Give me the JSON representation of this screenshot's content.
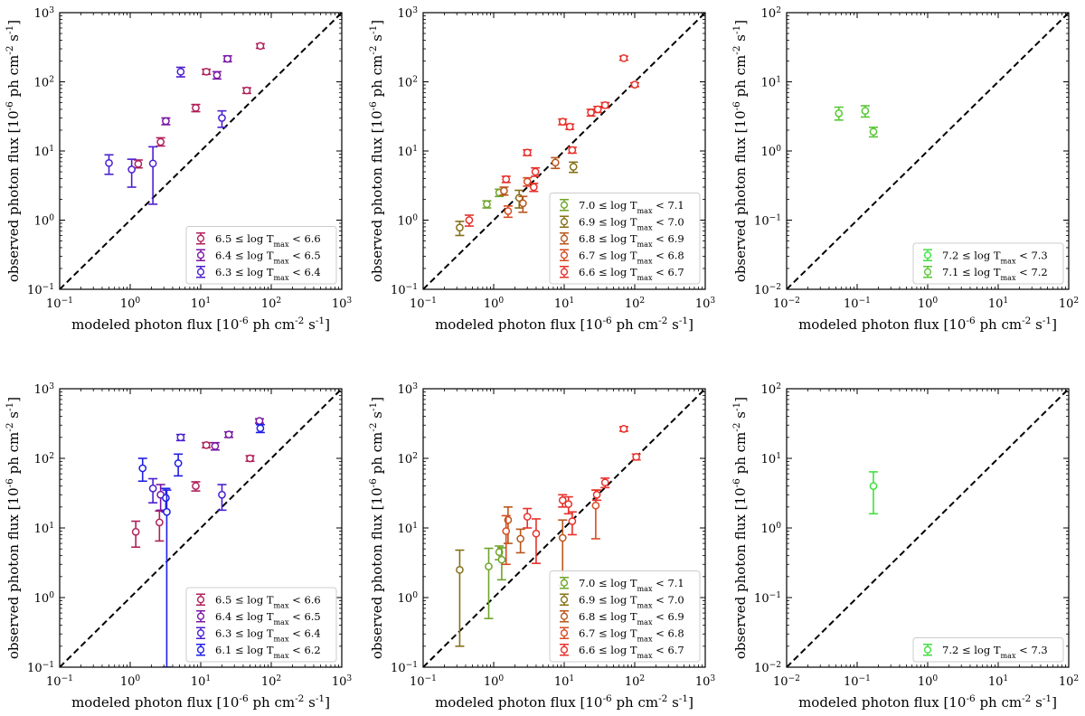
{
  "colors": {
    "T61": "#1f1fe6",
    "T63": "#4b1fd0",
    "T64": "#7a17a3",
    "T65": "#b0205a",
    "T66": "#e8302a",
    "T67": "#d84b22",
    "T68": "#b8561c",
    "T69": "#857018",
    "T70": "#6fa52a",
    "T71": "#58c832",
    "T72": "#3fe23f",
    "diagonal": "#000000"
  },
  "chart_data": [
    {
      "type": "scatter",
      "panel": "top-left",
      "scale": "log",
      "xlim": [
        0.1,
        1000
      ],
      "ylim": [
        0.1,
        1000
      ],
      "xlabel": "modeled photon flux [10^{-6} ph cm^{-2} s^{-1}]",
      "ylabel": "observed photon flux [10^{-6} ph cm^{-2} s^{-1}]",
      "legend_position": "lower-right",
      "diagonal": true,
      "series": [
        {
          "name": "6.5 ≤ log T_max < 6.6",
          "color_key": "T65",
          "points": [
            [
              1.3,
              6.5,
              5.7,
              7.4
            ],
            [
              2.7,
              13.5,
              11.8,
              15.5
            ],
            [
              8.5,
              42,
              37,
              47
            ],
            [
              12,
              140,
              128,
              152
            ],
            [
              45,
              75,
              68,
              82
            ],
            [
              70,
              330,
              305,
              355
            ]
          ]
        },
        {
          "name": "6.4 ≤ log T_max < 6.5",
          "color_key": "T64",
          "points": [
            [
              3.2,
              27,
              24,
              30
            ],
            [
              24,
              215,
              195,
              237
            ],
            [
              17,
              125,
              110,
              140
            ]
          ]
        },
        {
          "name": "6.3 ≤ log T_max < 6.4",
          "color_key": "T63",
          "points": [
            [
              0.5,
              6.7,
              4.6,
              8.8
            ],
            [
              1.05,
              5.4,
              3.0,
              7.6
            ],
            [
              2.1,
              6.6,
              1.7,
              11.5
            ],
            [
              5.2,
              140,
              118,
              162
            ],
            [
              20,
              30,
              22,
              38
            ]
          ]
        }
      ]
    },
    {
      "type": "scatter",
      "panel": "top-middle",
      "scale": "log",
      "xlim": [
        0.1,
        1000
      ],
      "ylim": [
        0.1,
        1000
      ],
      "xlabel": "modeled photon flux [10^{-6} ph cm^{-2} s^{-1}]",
      "ylabel": "observed photon flux [10^{-6} ph cm^{-2} s^{-1}]",
      "legend_position": "lower-right",
      "diagonal": true,
      "series": [
        {
          "name": "7.0 ≤ log T_max < 7.1",
          "color_key": "T70",
          "points": [
            [
              0.8,
              1.7,
              1.5,
              1.9
            ],
            [
              1.2,
              2.5,
              2.2,
              2.8
            ]
          ]
        },
        {
          "name": "6.9 ≤ log T_max < 7.0",
          "color_key": "T69",
          "points": [
            [
              0.33,
              0.78,
              0.6,
              0.96
            ],
            [
              13.5,
              5.9,
              4.9,
              6.9
            ],
            [
              2.3,
              2.1,
              1.5,
              2.7
            ]
          ]
        },
        {
          "name": "6.8 ≤ log T_max < 6.9",
          "color_key": "T68",
          "points": [
            [
              7.5,
              6.8,
              5.6,
              8.0
            ],
            [
              1.4,
              2.65,
              2.3,
              3.0
            ],
            [
              2.6,
              1.75,
              1.3,
              2.2
            ]
          ]
        },
        {
          "name": "6.7 ≤ log T_max < 6.8",
          "color_key": "T67",
          "points": [
            [
              1.6,
              1.35,
              1.1,
              1.6
            ],
            [
              3.0,
              3.6,
              3.1,
              4.1
            ]
          ]
        },
        {
          "name": "6.6 ≤ log T_max < 6.7",
          "color_key": "T66",
          "points": [
            [
              0.45,
              1.0,
              0.82,
              1.18
            ],
            [
              1.5,
              3.9,
              3.5,
              4.3
            ],
            [
              3.0,
              9.5,
              8.6,
              10.4
            ],
            [
              3.9,
              5.0,
              4.3,
              5.7
            ],
            [
              3.7,
              3.0,
              2.6,
              3.4
            ],
            [
              9.5,
              26.5,
              24,
              29
            ],
            [
              12,
              22.5,
              20.5,
              24.5
            ],
            [
              13,
              10.3,
              9.3,
              11.3
            ],
            [
              24,
              36,
              32,
              40
            ],
            [
              30,
              40,
              36,
              44
            ],
            [
              38,
              46,
              42,
              50
            ],
            [
              70,
              220,
              205,
              235
            ],
            [
              100,
              91,
              85,
              97
            ]
          ]
        }
      ]
    },
    {
      "type": "scatter",
      "panel": "top-right",
      "scale": "log",
      "xlim": [
        0.01,
        100
      ],
      "ylim": [
        0.01,
        100
      ],
      "xlabel": "modeled photon flux [10^{-6} ph cm^{-2} s^{-1}]",
      "ylabel": "observed photon flux [10^{-6} ph cm^{-2} s^{-1}]",
      "legend_position": "lower-right",
      "diagonal": true,
      "series": [
        {
          "name": "7.2 ≤ log T_max < 7.3",
          "color_key": "T72",
          "points": []
        },
        {
          "name": "7.1 ≤ log T_max < 7.2",
          "color_key": "T71",
          "points": [
            [
              0.055,
              3.5,
              2.8,
              4.3
            ],
            [
              0.13,
              3.8,
              3.1,
              4.5
            ],
            [
              0.17,
              1.9,
              1.6,
              2.2
            ]
          ]
        }
      ]
    },
    {
      "type": "scatter",
      "panel": "bottom-left",
      "scale": "log",
      "xlim": [
        0.1,
        1000
      ],
      "ylim": [
        0.1,
        1000
      ],
      "xlabel": "modeled photon flux [10^{-6} ph cm^{-2} s^{-1}]",
      "ylabel": "observed photon flux [10^{-6} ph cm^{-2} s^{-1}]",
      "legend_position": "lower-right",
      "diagonal": true,
      "series": [
        {
          "name": "6.5 ≤ log T_max < 6.6",
          "color_key": "T65",
          "points": [
            [
              1.2,
              8.8,
              5.3,
              12.5
            ],
            [
              2.6,
              12.0,
              6.5,
              17.5
            ],
            [
              8.5,
              40,
              34,
              46
            ],
            [
              12,
              155,
              142,
              168
            ],
            [
              50,
              100,
              91,
              109
            ]
          ]
        },
        {
          "name": "6.4 ≤ log T_max < 6.5",
          "color_key": "T64",
          "points": [
            [
              2.7,
              30,
              18,
              42
            ],
            [
              16,
              150,
              132,
              168
            ],
            [
              25,
              220,
              200,
              240
            ],
            [
              68,
              345,
              320,
              370
            ]
          ]
        },
        {
          "name": "6.3 ≤ log T_max < 6.4",
          "color_key": "T63",
          "points": [
            [
              2.1,
              37,
              23,
              51
            ],
            [
              5.2,
              200,
              180,
              220
            ],
            [
              20,
              30,
              18,
              42
            ]
          ]
        },
        {
          "name": "6.1 ≤ log T_max < 6.2",
          "color_key": "T61",
          "points": [
            [
              1.5,
              72,
              47,
              100
            ],
            [
              3.2,
              27,
              17,
              37
            ],
            [
              3.3,
              17,
              0.1,
              35
            ],
            [
              4.8,
              85,
              56,
              115
            ],
            [
              70,
              270,
              235,
              305
            ]
          ]
        }
      ]
    },
    {
      "type": "scatter",
      "panel": "bottom-middle",
      "scale": "log",
      "xlim": [
        0.1,
        1000
      ],
      "ylim": [
        0.1,
        1000
      ],
      "xlabel": "modeled photon flux [10^{-6} ph cm^{-2} s^{-1}]",
      "ylabel": "observed photon flux [10^{-6} ph cm^{-2} s^{-1}]",
      "legend_position": "lower-right",
      "diagonal": true,
      "series": [
        {
          "name": "7.0 ≤ log T_max < 7.1",
          "color_key": "T70",
          "points": [
            [
              0.85,
              2.8,
              0.5,
              5.1
            ],
            [
              1.2,
              4.5,
              3.5,
              5.5
            ],
            [
              1.3,
              3.5,
              1.8,
              5.2
            ]
          ]
        },
        {
          "name": "6.9 ≤ log T_max < 7.0",
          "color_key": "T69",
          "points": [
            [
              0.33,
              2.5,
              0.2,
              4.8
            ]
          ]
        },
        {
          "name": "6.8 ≤ log T_max < 6.9",
          "color_key": "T68",
          "points": [
            [
              1.6,
              13,
              6.0,
              20
            ],
            [
              2.4,
              7.0,
              4.4,
              9.6
            ],
            [
              9.5,
              7.2,
              1.5,
              13.0
            ]
          ]
        },
        {
          "name": "6.7 ≤ log T_max < 6.8",
          "color_key": "T67",
          "points": [
            [
              1.5,
              9.0,
              3.0,
              15.0
            ],
            [
              28,
              21,
              7.0,
              35
            ]
          ]
        },
        {
          "name": "6.6 ≤ log T_max < 6.7",
          "color_key": "T66",
          "points": [
            [
              3.0,
              14.5,
              10.0,
              19.0
            ],
            [
              4.0,
              8.3,
              3.1,
              13.5
            ],
            [
              9.5,
              25,
              20,
              30
            ],
            [
              11.5,
              22,
              16,
              28
            ],
            [
              13,
              12.5,
              8.0,
              17.0
            ],
            [
              29,
              30,
              25,
              35
            ],
            [
              38,
              45,
              38,
              52
            ],
            [
              70,
              265,
              245,
              285
            ],
            [
              105,
              105,
              95,
              115
            ]
          ]
        }
      ]
    },
    {
      "type": "scatter",
      "panel": "bottom-right",
      "scale": "log",
      "xlim": [
        0.01,
        100
      ],
      "ylim": [
        0.01,
        100
      ],
      "xlabel": "modeled photon flux [10^{-6} ph cm^{-2} s^{-1}]",
      "ylabel": "observed photon flux [10^{-6} ph cm^{-2} s^{-1}]",
      "legend_position": "lower-right",
      "diagonal": true,
      "series": [
        {
          "name": "7.2 ≤ log T_max < 7.3",
          "color_key": "T72",
          "points": [
            [
              0.17,
              4.0,
              1.6,
              6.4
            ]
          ]
        }
      ]
    }
  ]
}
